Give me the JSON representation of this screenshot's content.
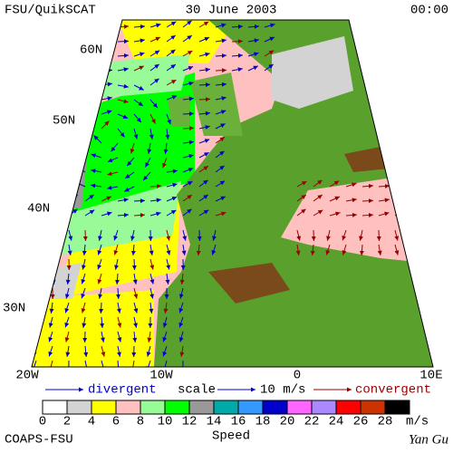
{
  "header": {
    "left": "FSU/QuikSCAT",
    "center": "30 June 2003",
    "right": "00:00"
  },
  "map": {
    "lat_labels": [
      "60N",
      "50N",
      "40N",
      "30N"
    ],
    "lon_labels": [
      "20W",
      "10W",
      "0",
      "10E"
    ]
  },
  "legend": {
    "divergent": "divergent",
    "scale": "scale",
    "scale_value": "10 m/s",
    "convergent": "convergent"
  },
  "colorbar": {
    "ticks": [
      0,
      2,
      4,
      6,
      8,
      10,
      12,
      14,
      16,
      18,
      20,
      22,
      24,
      26,
      28
    ],
    "colors": [
      "#ffffff",
      "#d3d3d3",
      "#ffff00",
      "#ffc0c0",
      "#98fb98",
      "#00ff00",
      "#999999",
      "#00aaaa",
      "#3399ff",
      "#0000cc",
      "#ff66ff",
      "#aa88ff",
      "#ff0000",
      "#cc3300",
      "#000000"
    ],
    "unit": "m/s",
    "label": "Speed"
  },
  "footer": {
    "left": "COAPS-FSU",
    "right": "Yan Gu"
  }
}
